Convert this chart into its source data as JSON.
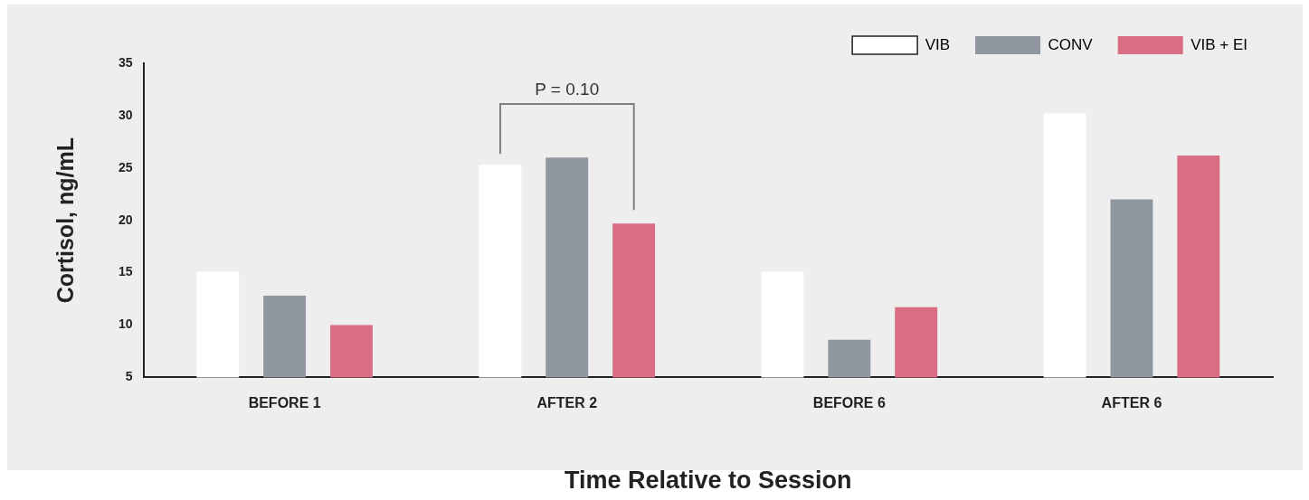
{
  "chart_data": {
    "type": "bar",
    "xlabel": "Time Relative to Session",
    "ylabel": "Cortisol, ng/mL",
    "categories": [
      "BEFORE 1",
      "AFTER 2",
      "BEFORE 6",
      "AFTER 6"
    ],
    "series": [
      {
        "name": "VIB",
        "color": "#ffffff",
        "values": [
          15.1,
          25.3,
          15.1,
          30.2
        ]
      },
      {
        "name": "CONV",
        "color": "#90979f",
        "values": [
          12.8,
          26.0,
          8.6,
          22.0
        ]
      },
      {
        "name": "VIB + EI",
        "color": "#d96d83",
        "values": [
          10.0,
          19.7,
          11.7,
          26.2
        ]
      }
    ],
    "ylim": [
      5,
      35
    ],
    "yticks": [
      5,
      10,
      15,
      20,
      25,
      30,
      35
    ],
    "grid": false,
    "legend": "top right",
    "annotations": [
      "P = 0.10"
    ]
  }
}
